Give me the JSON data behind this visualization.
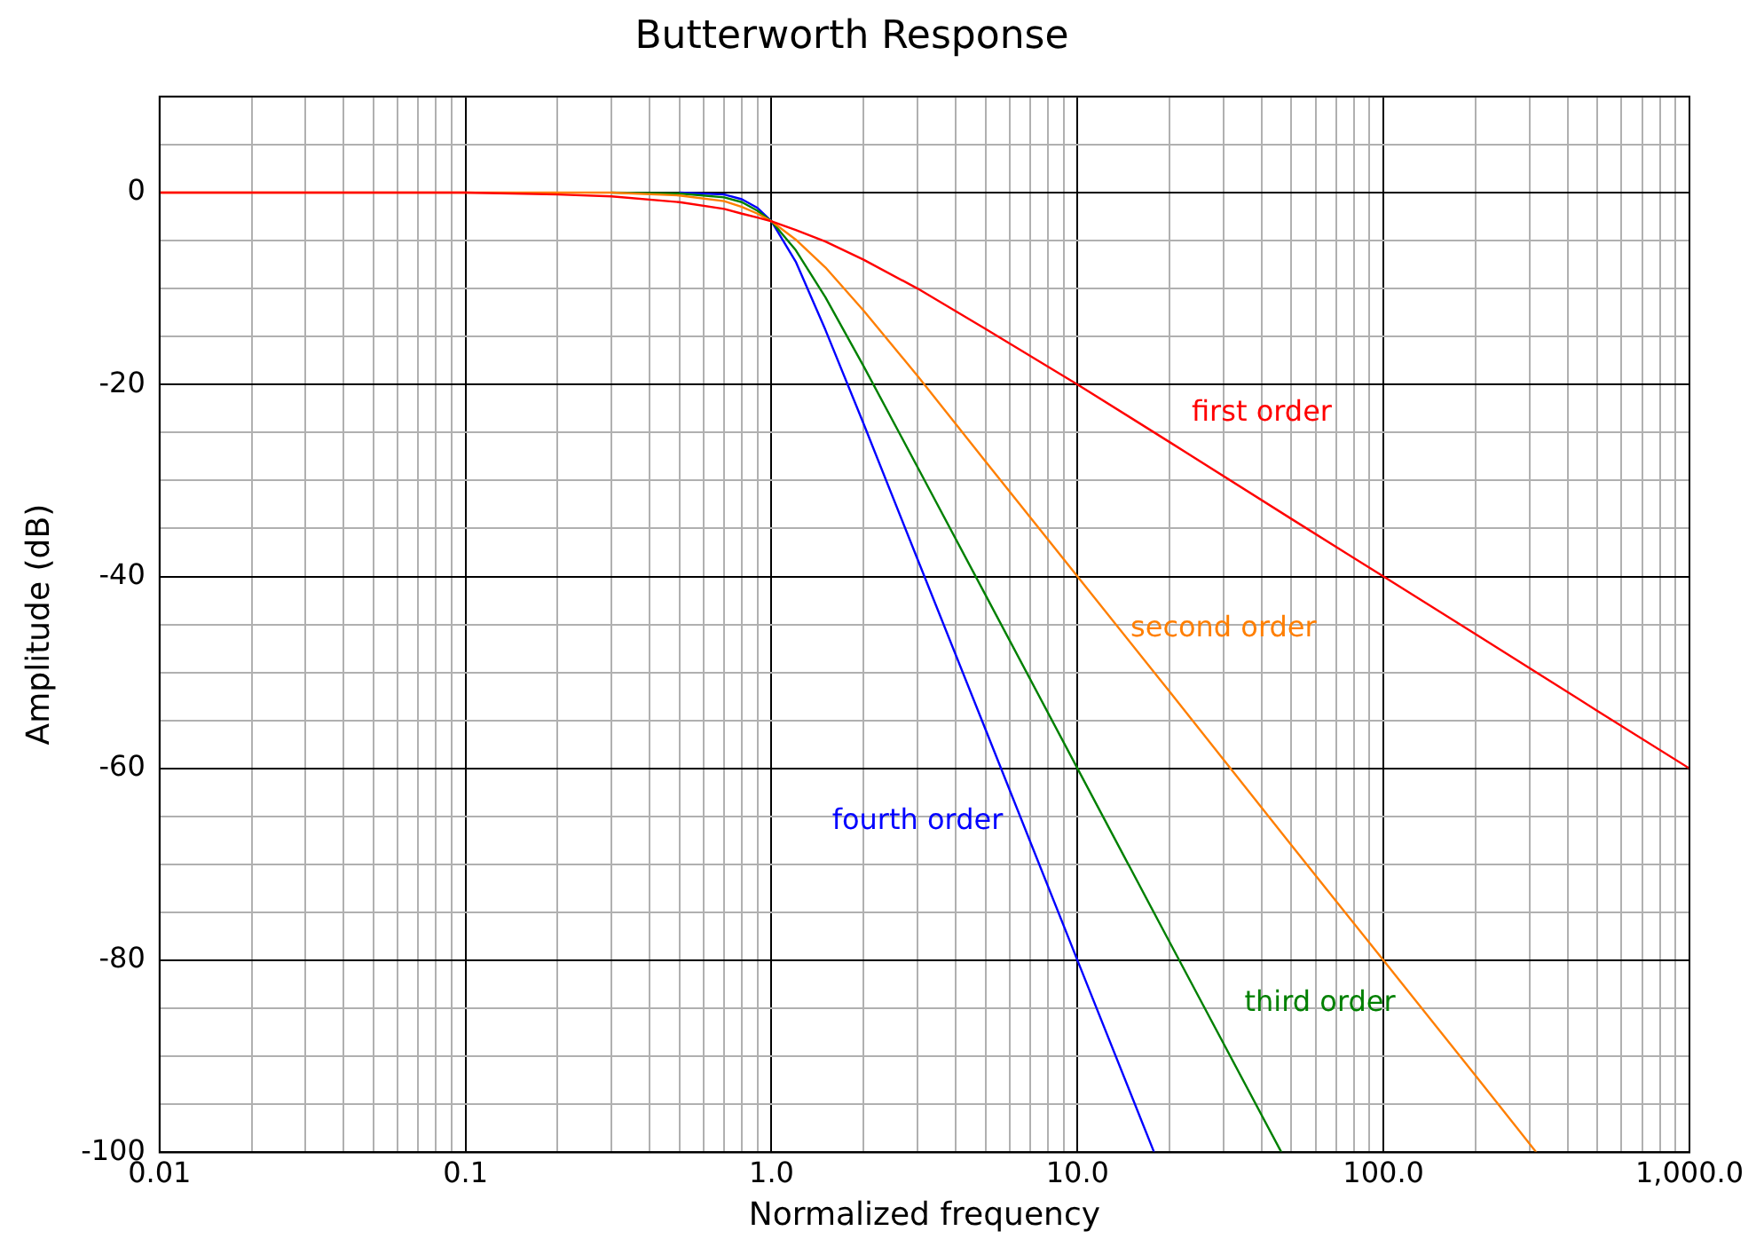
{
  "chart_data": {
    "type": "line",
    "title": "Butterworth Response",
    "xlabel": "Normalized frequency",
    "ylabel": "Amplitude (dB)",
    "log": "x",
    "grid": true,
    "legend": false,
    "marker": "none",
    "line_style": "solid",
    "xlim": [
      0.01,
      1000
    ],
    "ylim": [
      -100,
      10
    ],
    "xticks": [
      0.01,
      {
        "value": 0.02,
        "label": null
      },
      {
        "value": 0.03,
        "label": null
      },
      {
        "value": 0.04,
        "label": null
      },
      {
        "value": 0.05,
        "label": null
      },
      {
        "value": 0.06,
        "label": null
      },
      {
        "value": 0.07,
        "label": null
      },
      {
        "value": 0.08,
        "label": null
      },
      {
        "value": 0.09,
        "label": null
      },
      0.1,
      {
        "value": 0.2,
        "label": null
      },
      {
        "value": 0.3,
        "label": null
      },
      {
        "value": 0.4,
        "label": null
      },
      {
        "value": 0.5,
        "label": null
      },
      {
        "value": 0.6,
        "label": null
      },
      {
        "value": 0.7,
        "label": null
      },
      {
        "value": 0.8,
        "label": null
      },
      {
        "value": 0.9,
        "label": null
      },
      {
        "value": 1,
        "label": "1.0"
      },
      {
        "value": 2,
        "label": null
      },
      {
        "value": 3,
        "label": null
      },
      {
        "value": 4,
        "label": null
      },
      {
        "value": 5,
        "label": null
      },
      {
        "value": 6,
        "label": null
      },
      {
        "value": 7,
        "label": null
      },
      {
        "value": 8,
        "label": null
      },
      {
        "value": 9,
        "label": null
      },
      {
        "value": 10,
        "label": "10.0"
      },
      {
        "value": 20,
        "label": null
      },
      {
        "value": 30,
        "label": null
      },
      {
        "value": 40,
        "label": null
      },
      {
        "value": 50,
        "label": null
      },
      {
        "value": 60,
        "label": null
      },
      {
        "value": 70,
        "label": null
      },
      {
        "value": 80,
        "label": null
      },
      {
        "value": 90,
        "label": null
      },
      {
        "value": 100,
        "label": "100.0"
      },
      {
        "value": 200,
        "label": null
      },
      {
        "value": 300,
        "label": null
      },
      {
        "value": 400,
        "label": null
      },
      {
        "value": 500,
        "label": null
      },
      {
        "value": 600,
        "label": null
      },
      {
        "value": 700,
        "label": null
      },
      {
        "value": 800,
        "label": null
      },
      {
        "value": 900,
        "label": null
      },
      {
        "value": 1000,
        "label": "1,000.0"
      }
    ],
    "yticks": [
      -100,
      {
        "value": -95,
        "label": null
      },
      {
        "value": -90,
        "label": null
      },
      {
        "value": -85,
        "label": null
      },
      -80,
      {
        "value": -75,
        "label": null
      },
      {
        "value": -70,
        "label": null
      },
      {
        "value": -65,
        "label": null
      },
      -60,
      {
        "value": -55,
        "label": null
      },
      {
        "value": -50,
        "label": null
      },
      {
        "value": -45,
        "label": null
      },
      -40,
      {
        "value": -35,
        "label": null
      },
      {
        "value": -30,
        "label": null
      },
      {
        "value": -25,
        "label": null
      },
      -20,
      {
        "value": -15,
        "label": null
      },
      {
        "value": -10,
        "label": null
      },
      {
        "value": -5,
        "label": null
      },
      0,
      {
        "value": 5,
        "label": null
      },
      {
        "value": 10,
        "label": null
      }
    ],
    "series": [
      {
        "name": "first order",
        "color": "#ff0000",
        "x": [
          0.01,
          0.1,
          0.2,
          0.3,
          0.5,
          0.7,
          0.8,
          0.9,
          1,
          1.2,
          1.5,
          2,
          3,
          5,
          10,
          20,
          50,
          100,
          200,
          500,
          1000
        ],
        "values": [
          0,
          0,
          -0.2,
          -0.4,
          -1,
          -1.7,
          -2.2,
          -2.6,
          -3,
          -3.9,
          -5.1,
          -7,
          -10,
          -14.2,
          -20,
          -26,
          -34,
          -40,
          -46,
          -54,
          -60
        ]
      },
      {
        "name": "second order",
        "color": "#ff7f00",
        "x": [
          0.01,
          0.1,
          0.2,
          0.3,
          0.5,
          0.7,
          0.8,
          0.9,
          1,
          1.2,
          1.5,
          2,
          3,
          5,
          10,
          20,
          50,
          100,
          200,
          316
        ],
        "values": [
          0,
          0,
          0,
          0,
          -0.3,
          -0.9,
          -1.5,
          -2.2,
          -3,
          -4.9,
          -7.8,
          -12.3,
          -19.1,
          -28,
          -40,
          -52,
          -68,
          -80,
          -92,
          -100
        ]
      },
      {
        "name": "third order",
        "color": "#008000",
        "x": [
          0.3,
          0.5,
          0.7,
          0.8,
          0.9,
          1,
          1.2,
          1.5,
          2,
          3,
          5,
          10,
          20,
          46.4
        ],
        "values": [
          0,
          -0.1,
          -0.5,
          -1,
          -1.9,
          -3,
          -6,
          -10.9,
          -18.1,
          -28.6,
          -41.9,
          -60,
          -78.1,
          -100
        ]
      },
      {
        "name": "fourth order",
        "color": "#0000ff",
        "x": [
          0.5,
          0.7,
          0.8,
          0.9,
          1,
          1.2,
          1.5,
          2,
          3,
          5,
          10,
          17.8
        ],
        "values": [
          0,
          -0.2,
          -0.7,
          -1.6,
          -3,
          -7.2,
          -14.3,
          -24.1,
          -38.2,
          -55.9,
          -80,
          -100
        ]
      }
    ]
  }
}
